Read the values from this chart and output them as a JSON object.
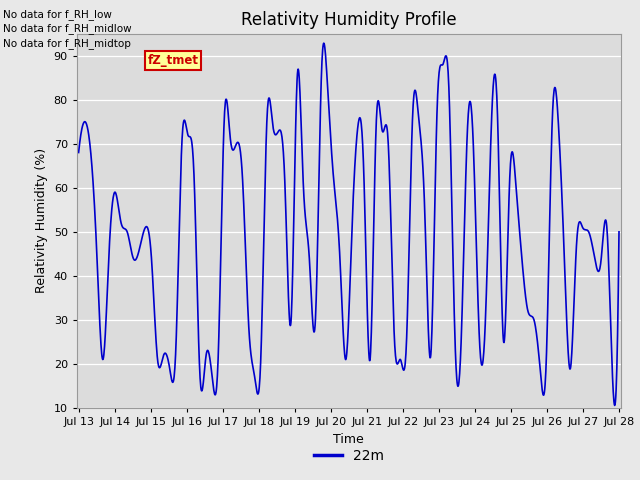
{
  "title": "Relativity Humidity Profile",
  "xlabel": "Time",
  "ylabel": "Relativity Humidity (%)",
  "ylim": [
    10,
    95
  ],
  "yticks": [
    10,
    20,
    30,
    40,
    50,
    60,
    70,
    80,
    90
  ],
  "line_color": "#0000cc",
  "line_width": 1.2,
  "bg_color": "#e8e8e8",
  "plot_bg_color": "#dcdcdc",
  "annotations_top_left": [
    "No data for f_RH_low",
    "No data for f_RH_midlow",
    "No data for f_RH_midtop"
  ],
  "legend_box_label": "fZ_tmet",
  "legend_box_color": "#cc0000",
  "legend_box_bg": "#ffff99",
  "legend_line_label": "22m",
  "x_tick_labels": [
    "Jul 13",
    "Jul 14",
    "Jul 15",
    "Jul 16",
    "Jul 17",
    "Jul 18",
    "Jul 19",
    "Jul 20",
    "Jul 21",
    "Jul 22",
    "Jul 23",
    "Jul 24",
    "Jul 25",
    "Jul 26",
    "Jul 27",
    "Jul 28"
  ],
  "humidity_data": [
    68,
    75,
    68,
    45,
    21,
    45,
    59,
    52,
    50,
    44,
    46,
    51,
    44,
    21,
    22,
    19,
    23,
    70,
    72,
    63,
    17,
    22,
    17,
    22,
    76,
    71,
    70,
    62,
    29,
    17,
    21,
    75,
    74,
    73,
    60,
    30,
    85,
    61,
    44,
    30,
    86,
    83,
    62,
    45,
    21,
    50,
    74,
    62,
    21,
    74,
    73,
    70,
    26,
    21,
    25,
    76,
    76,
    55,
    22,
    76,
    88,
    82,
    25,
    25,
    72,
    70,
    26,
    30,
    75,
    76,
    25,
    62,
    61,
    44,
    32,
    30,
    19,
    20,
    75,
    75,
    44,
    19,
    47,
    51,
    50,
    44,
    43,
    51,
    15,
    50
  ],
  "num_points_per_segment": 6
}
